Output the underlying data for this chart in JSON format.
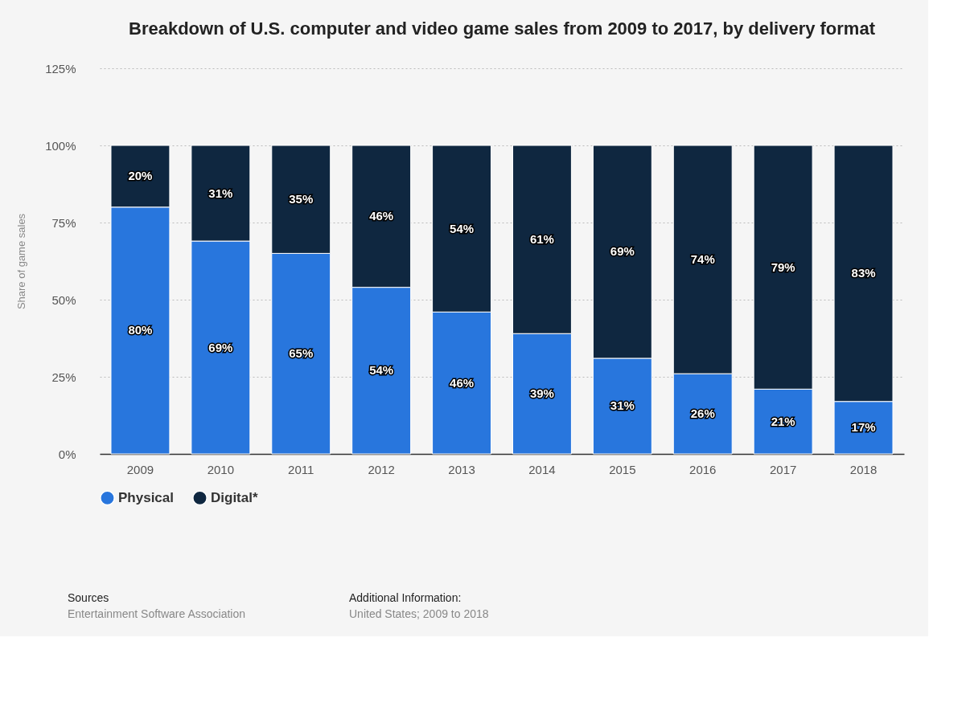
{
  "chart_data": {
    "type": "bar",
    "title": "Breakdown of U.S. computer and video game sales from 2009 to 2017, by delivery format",
    "ylabel": "Share of game sales",
    "categories": [
      "2009",
      "2010",
      "2011",
      "2012",
      "2013",
      "2014",
      "2015",
      "2016",
      "2017",
      "2018"
    ],
    "series": [
      {
        "name": "Physical",
        "color": "#2876dd",
        "values": [
          80,
          69,
          65,
          54,
          46,
          39,
          31,
          26,
          21,
          17
        ],
        "value_labels": [
          "80%",
          "69%",
          "65%",
          "54%",
          "46%",
          "39%",
          "31%",
          "26%",
          "21%",
          "17%"
        ]
      },
      {
        "name": "Digital*",
        "color": "#0f2740",
        "values": [
          20,
          31,
          35,
          46,
          54,
          61,
          69,
          74,
          79,
          83
        ],
        "value_labels": [
          "20%",
          "31%",
          "35%",
          "46%",
          "54%",
          "61%",
          "69%",
          "74%",
          "79%",
          "83%"
        ]
      }
    ],
    "stacked": true,
    "ylim": [
      0,
      125
    ],
    "yticks": [
      {
        "value": 0,
        "label": "0%"
      },
      {
        "value": 25,
        "label": "25%"
      },
      {
        "value": 50,
        "label": "50%"
      },
      {
        "value": 75,
        "label": "75%"
      },
      {
        "value": 100,
        "label": "100%"
      },
      {
        "value": 125,
        "label": "125%"
      }
    ],
    "grid": "y",
    "legend": "bottom",
    "annotations": [
      "Sources",
      "Entertainment Software Association",
      "Additional Information:",
      "United States; 2009 to 2018"
    ]
  }
}
